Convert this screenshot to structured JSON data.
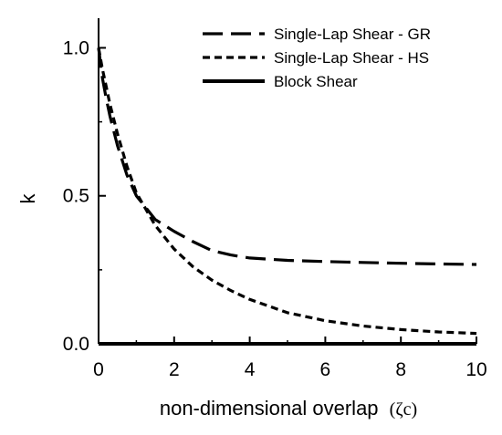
{
  "chart_data": {
    "type": "line",
    "xlabel": "non-dimensional overlap",
    "xlabel_symbol": "(ζc)",
    "ylabel": "k",
    "xlim": [
      0,
      10
    ],
    "ylim": [
      0,
      1.1
    ],
    "x_ticks": [
      0,
      2,
      4,
      6,
      8,
      10
    ],
    "x_tick_labels": [
      "0",
      "2",
      "4",
      "6",
      "8",
      "10"
    ],
    "y_ticks": [
      0.0,
      0.5,
      1.0
    ],
    "y_tick_labels": [
      "0.0",
      "0.5",
      "1.0"
    ],
    "grid": false,
    "legend_position": "top-right",
    "series": [
      {
        "name": "Single-Lap Shear - GR",
        "style": "long-dash",
        "x": [
          0,
          0.1,
          0.2,
          0.3,
          0.5,
          0.75,
          1.0,
          1.5,
          2.0,
          2.5,
          3.0,
          3.5,
          4.0,
          5.0,
          6.0,
          7.0,
          8.0,
          9.0,
          10.0
        ],
        "y": [
          1.0,
          0.9,
          0.83,
          0.77,
          0.67,
          0.57,
          0.5,
          0.42,
          0.38,
          0.345,
          0.315,
          0.3,
          0.29,
          0.282,
          0.278,
          0.275,
          0.272,
          0.27,
          0.268
        ]
      },
      {
        "name": "Single-Lap Shear - HS",
        "style": "short-dash",
        "x": [
          0,
          0.1,
          0.2,
          0.3,
          0.5,
          0.75,
          1.0,
          1.5,
          2.0,
          2.5,
          3.0,
          3.5,
          4.0,
          5.0,
          6.0,
          7.0,
          8.0,
          9.0,
          10.0
        ],
        "y": [
          1.0,
          0.93,
          0.87,
          0.81,
          0.71,
          0.6,
          0.51,
          0.4,
          0.32,
          0.26,
          0.215,
          0.18,
          0.15,
          0.105,
          0.078,
          0.06,
          0.048,
          0.04,
          0.035
        ]
      },
      {
        "name": "Block Shear",
        "style": "solid",
        "x": [
          0,
          10
        ],
        "y": [
          0,
          0
        ]
      }
    ]
  }
}
